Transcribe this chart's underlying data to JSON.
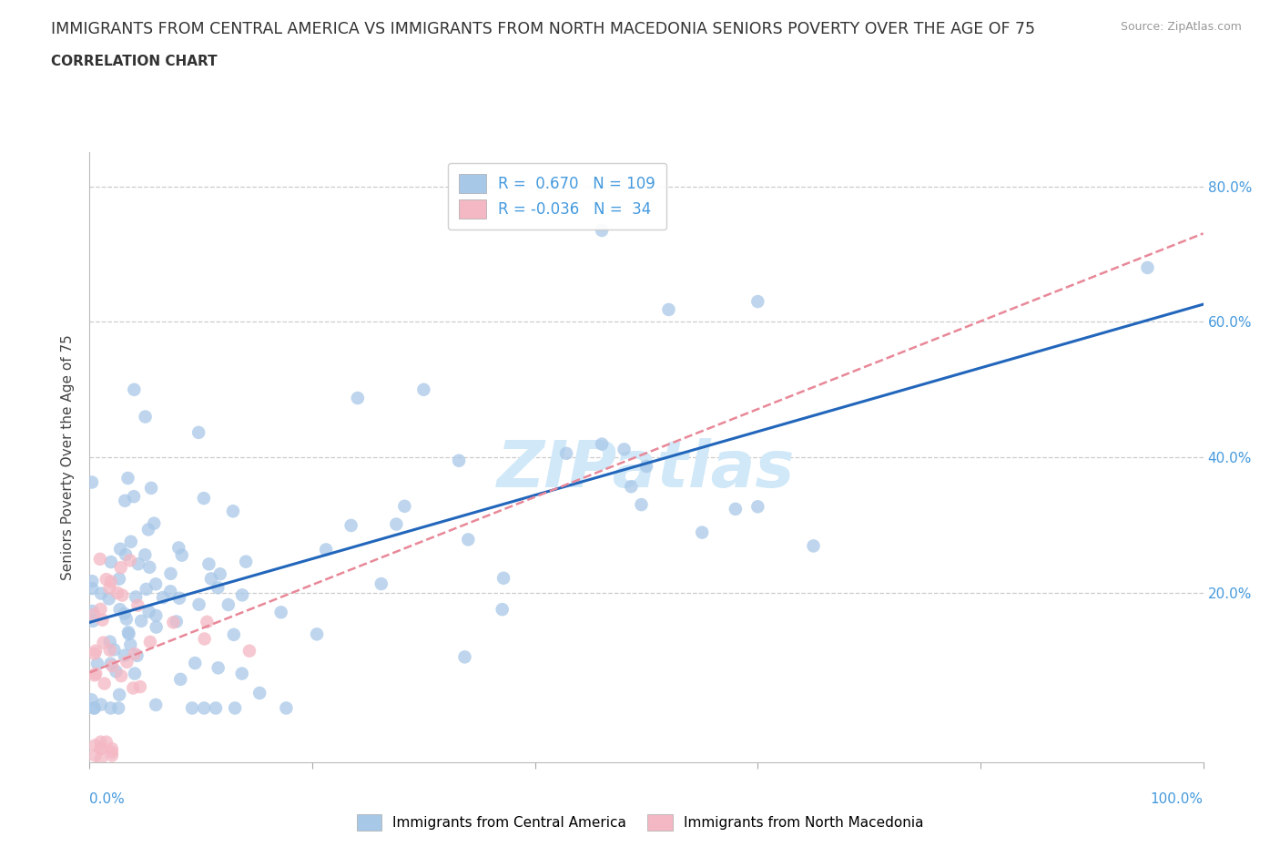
{
  "title": "IMMIGRANTS FROM CENTRAL AMERICA VS IMMIGRANTS FROM NORTH MACEDONIA SENIORS POVERTY OVER THE AGE OF 75",
  "subtitle": "CORRELATION CHART",
  "source": "Source: ZipAtlas.com",
  "ylabel": "Seniors Poverty Over the Age of 75",
  "r_central": 0.67,
  "n_central": 109,
  "r_macedonia": -0.036,
  "n_macedonia": 34,
  "xlim": [
    0.0,
    1.0
  ],
  "ylim": [
    -0.05,
    0.85
  ],
  "color_central": "#a8c8e8",
  "color_macedonia": "#f4b8c4",
  "line_color_central": "#2266bb",
  "line_color_macedonia": "#e88898",
  "right_tick_color": "#4499dd",
  "watermark_color": "#d0e8f8",
  "legend_label_central": "Immigrants from Central America",
  "legend_label_macedonia": "Immigrants from North Macedonia"
}
